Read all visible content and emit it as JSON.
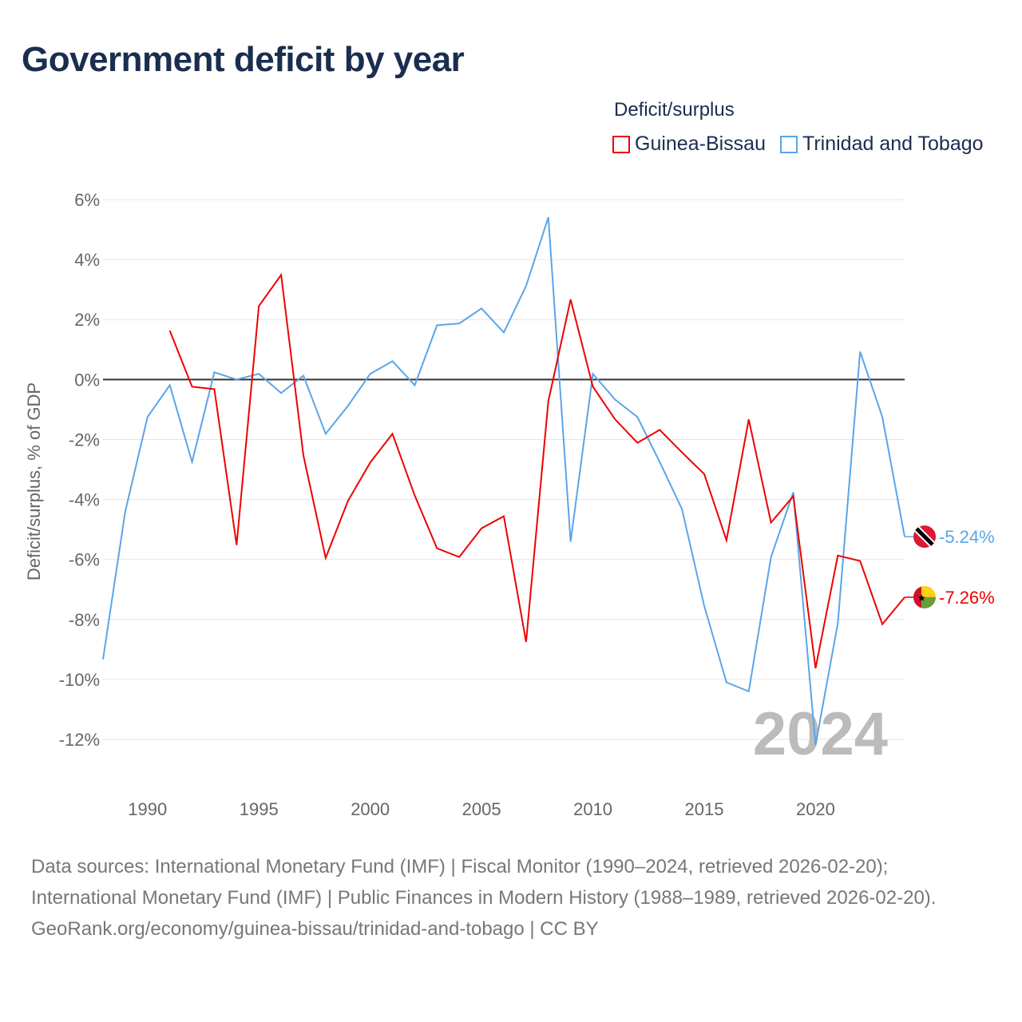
{
  "title": "Government deficit by year",
  "legend_title": "Deficit/surplus",
  "footer": {
    "sources": "Data sources: International Monetary Fund (IMF) | Fiscal Monitor (1990–2024, retrieved 2026-02-20); International Monetary Fund (IMF) | Public Finances in Modern History (1988–1989, retrieved 2026-02-20).",
    "link": "GeoRank.org/economy/guinea-bissau/trinidad-and-tobago | CC BY"
  },
  "chart_data": {
    "type": "line",
    "title": "Government deficit by year",
    "xlabel": "",
    "ylabel": "Deficit/surplus, % of GDP",
    "xlim": [
      1988,
      2024
    ],
    "ylim": [
      -12,
      6
    ],
    "yticks": [
      6,
      4,
      2,
      0,
      -2,
      -4,
      -6,
      -8,
      -10,
      -12
    ],
    "ytick_labels": [
      "6%",
      "4%",
      "2%",
      "0%",
      "-2%",
      "-4%",
      "-6%",
      "-8%",
      "-10%",
      "-12%"
    ],
    "xticks": [
      1990,
      1995,
      2000,
      2005,
      2010,
      2015,
      2020
    ],
    "xtick_labels": [
      "1990",
      "1995",
      "2000",
      "2005",
      "2010",
      "2015",
      "2020"
    ],
    "year_watermark": "2024",
    "legend_placement": "top-right",
    "series": [
      {
        "name": "Guinea-Bissau",
        "color": "#ee0000",
        "end_label": "-7.26%",
        "x": [
          1991,
          1992,
          1993,
          1994,
          1995,
          1996,
          1997,
          1998,
          1999,
          2000,
          2001,
          2002,
          2003,
          2004,
          2005,
          2006,
          2007,
          2008,
          2009,
          2010,
          2011,
          2012,
          2013,
          2014,
          2015,
          2016,
          2017,
          2018,
          2019,
          2020,
          2021,
          2022,
          2023,
          2024
        ],
        "values": [
          1.63,
          -0.24,
          -0.32,
          -5.52,
          2.45,
          3.49,
          -2.53,
          -5.95,
          -4.05,
          -2.77,
          -1.81,
          -3.87,
          -5.63,
          -5.92,
          -4.96,
          -4.56,
          -8.75,
          -0.72,
          2.67,
          -0.24,
          -1.33,
          -2.11,
          -1.68,
          -2.43,
          -3.15,
          -5.36,
          -1.33,
          -4.77,
          -3.89,
          -9.63,
          -5.87,
          -6.05,
          -8.16,
          -7.26
        ]
      },
      {
        "name": "Trinidad and Tobago",
        "color": "#5aa5ea",
        "end_label": "-5.24%",
        "x": [
          1988,
          1989,
          1990,
          1991,
          1992,
          1993,
          1994,
          1995,
          1996,
          1997,
          1998,
          1999,
          2000,
          2001,
          2002,
          2003,
          2004,
          2005,
          2006,
          2007,
          2008,
          2009,
          2010,
          2011,
          2012,
          2013,
          2014,
          2015,
          2016,
          2017,
          2018,
          2019,
          2020,
          2021,
          2022,
          2023,
          2024
        ],
        "values": [
          -9.33,
          -4.4,
          -1.25,
          -0.19,
          -2.75,
          0.24,
          0,
          0.19,
          -0.45,
          0.13,
          -1.81,
          -0.88,
          0.19,
          0.61,
          -0.19,
          1.81,
          1.87,
          2.37,
          1.57,
          3.12,
          5.41,
          -5.41,
          0.19,
          -0.67,
          -1.25,
          -2.75,
          -4.32,
          -7.55,
          -10.1,
          -10.4,
          -5.92,
          -3.76,
          -12.19,
          -8.13,
          0.93,
          -1.25,
          -5.24
        ]
      }
    ]
  }
}
